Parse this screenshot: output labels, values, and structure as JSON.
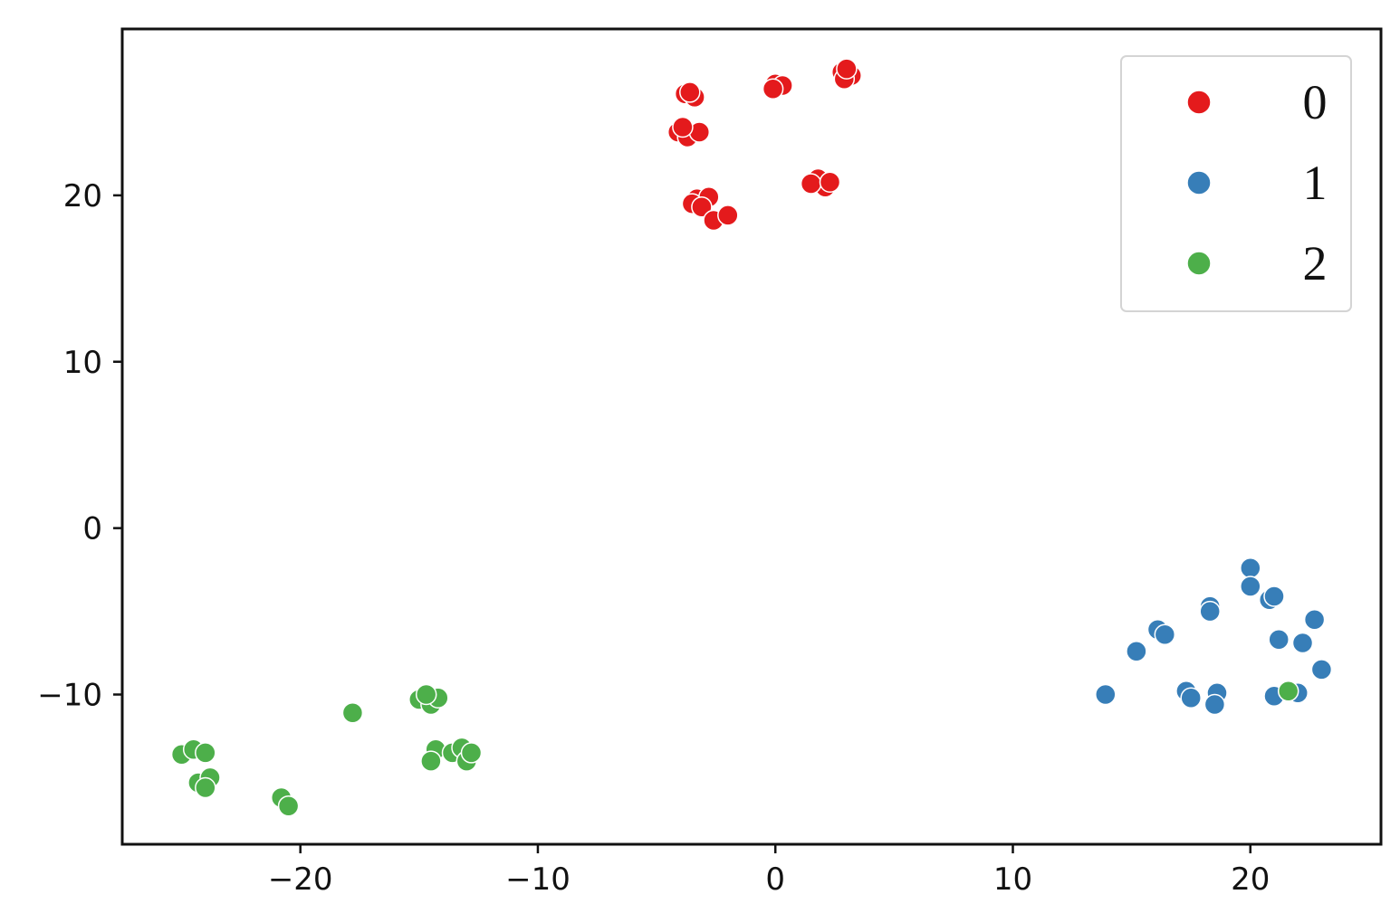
{
  "chart_data": {
    "type": "scatter",
    "title": "",
    "xlabel": "",
    "ylabel": "",
    "xlim": [
      -27.5,
      25.5
    ],
    "ylim": [
      -19,
      30
    ],
    "xticks": [
      -20,
      -10,
      0,
      10,
      20
    ],
    "yticks": [
      -10,
      0,
      10,
      20
    ],
    "xtick_labels": [
      "−20",
      "−10",
      "0",
      "10",
      "20"
    ],
    "ytick_labels": [
      "−10",
      "0",
      "10",
      "20"
    ],
    "grid": false,
    "legend": {
      "position": "top-right"
    },
    "series": [
      {
        "name": "0",
        "color": "#e41a1c",
        "points": [
          [
            -3.8,
            26.1
          ],
          [
            -3.4,
            25.9
          ],
          [
            -3.6,
            26.2
          ],
          [
            -4.1,
            23.8
          ],
          [
            -3.7,
            23.5
          ],
          [
            -3.2,
            23.8
          ],
          [
            -3.9,
            24.1
          ],
          [
            0.0,
            26.7
          ],
          [
            0.3,
            26.6
          ],
          [
            -0.1,
            26.4
          ],
          [
            2.8,
            27.4
          ],
          [
            3.2,
            27.2
          ],
          [
            2.9,
            27.0
          ],
          [
            3.0,
            27.6
          ],
          [
            -3.3,
            19.8
          ],
          [
            -2.8,
            19.9
          ],
          [
            -3.5,
            19.5
          ],
          [
            -3.1,
            19.3
          ],
          [
            -2.6,
            18.5
          ],
          [
            -2.0,
            18.8
          ],
          [
            1.8,
            21.0
          ],
          [
            2.1,
            20.5
          ],
          [
            1.5,
            20.7
          ],
          [
            2.3,
            20.8
          ]
        ]
      },
      {
        "name": "1",
        "color": "#377eb8",
        "points": [
          [
            20.0,
            -2.4
          ],
          [
            20.0,
            -3.5
          ],
          [
            20.8,
            -4.3
          ],
          [
            21.0,
            -4.1
          ],
          [
            18.3,
            -4.7
          ],
          [
            18.3,
            -5.0
          ],
          [
            22.7,
            -5.5
          ],
          [
            16.1,
            -6.1
          ],
          [
            16.4,
            -6.4
          ],
          [
            21.2,
            -6.7
          ],
          [
            22.2,
            -6.9
          ],
          [
            15.2,
            -7.4
          ],
          [
            23.0,
            -8.5
          ],
          [
            13.9,
            -10.0
          ],
          [
            17.3,
            -9.8
          ],
          [
            17.5,
            -10.2
          ],
          [
            18.6,
            -9.9
          ],
          [
            18.5,
            -10.6
          ],
          [
            21.0,
            -10.1
          ],
          [
            22.0,
            -9.9
          ]
        ]
      },
      {
        "name": "2",
        "color": "#4daf4a",
        "points": [
          [
            -25.0,
            -13.6
          ],
          [
            -24.5,
            -13.3
          ],
          [
            -24.0,
            -13.5
          ],
          [
            -24.3,
            -15.3
          ],
          [
            -23.8,
            -15.0
          ],
          [
            -24.0,
            -15.6
          ],
          [
            -20.8,
            -16.2
          ],
          [
            -20.5,
            -16.7
          ],
          [
            -17.8,
            -11.1
          ],
          [
            -15.0,
            -10.3
          ],
          [
            -14.5,
            -10.6
          ],
          [
            -14.2,
            -10.2
          ],
          [
            -14.7,
            -10.0
          ],
          [
            -14.3,
            -13.3
          ],
          [
            -14.5,
            -14.0
          ],
          [
            -13.6,
            -13.5
          ],
          [
            -13.2,
            -13.2
          ],
          [
            -13.0,
            -14.0
          ],
          [
            -12.8,
            -13.5
          ],
          [
            21.6,
            -9.8
          ]
        ]
      }
    ]
  }
}
